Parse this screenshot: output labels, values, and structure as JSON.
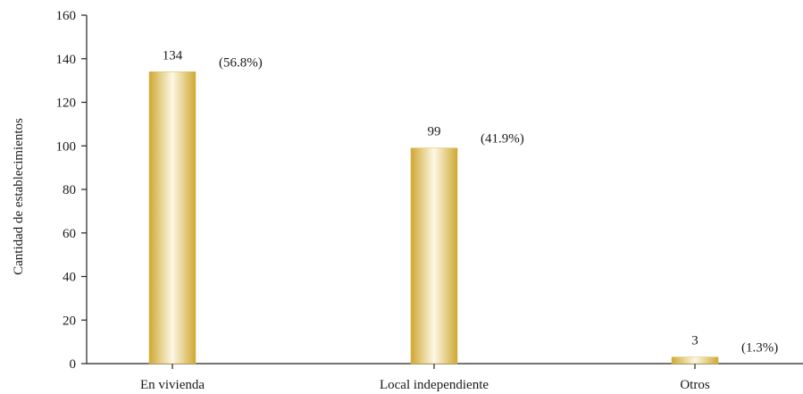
{
  "chart_data": {
    "type": "bar",
    "categories": [
      "En vivienda",
      "Local independiente",
      "Otros"
    ],
    "values": [
      134,
      99,
      3
    ],
    "value_labels": [
      "134",
      "99",
      "3"
    ],
    "percent_labels": [
      "(56.8%)",
      "(41.9%)",
      "(1.3%)"
    ],
    "title": "",
    "xlabel": "",
    "ylabel": "Cantidad de establecimientos",
    "ylim": [
      0,
      160
    ],
    "yticks": [
      0,
      20,
      40,
      60,
      80,
      100,
      120,
      140,
      160
    ],
    "grid": false,
    "legend": "none",
    "bar_color": "#d9b53f",
    "bar_highlight": "#fdf8e6"
  }
}
